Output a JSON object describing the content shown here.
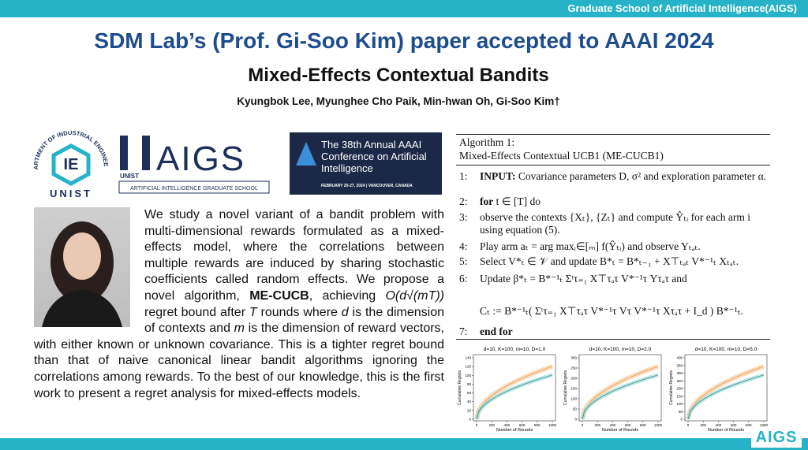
{
  "banner": {
    "text": "Graduate School of Artificial Intelligence(AIGS)"
  },
  "header": {
    "title": "SDM Lab’s (Prof. Gi-Soo Kim) paper accepted to AAAI 2024",
    "paper_title": "Mixed-Effects Contextual Bandits",
    "authors": "Kyungbok Lee, Myunghee Cho Paik, Min-hwan Oh, Gi-Soo Kim†"
  },
  "logos": {
    "ie": {
      "ring": "DEPARTMENT OF INDUSTRIAL ENGINEERING",
      "mark": "IE",
      "name": "UNIST"
    },
    "aigs": {
      "unist": "UNIST",
      "mark": "AIGS",
      "caption": "ARTIFICIAL INTELLIGENCE GRADUATE SCHOOL"
    },
    "aaai": {
      "title": "The 38th Annual AAAI Conference on Artificial Intelligence",
      "date": "FEBRUARY 20-27, 2024 | VANCOUVER, CANADA"
    },
    "footer": {
      "mark": "AIGS"
    }
  },
  "abstract": {
    "parts": [
      "We study a novel variant of a bandit problem with multi-dimensional rewards formulated as a mixed-effects model, where the correlations between multiple rewards are induced by sharing stochastic coefficients called random effects. We propose a novel algorithm, ",
      "ME-CUCB",
      ", achieving ",
      "O(d√(mT))",
      " regret bound after ",
      "T",
      " rounds where ",
      "d",
      " is the dimension of contexts and ",
      "m",
      " is the dimension of reward vectors, with either known or unknown covariance. This is a tighter regret bound than that of naive canonical linear bandit algorithms ignoring the correlations among rewards. To the best of our knowledge, this is the first work to present a regret analysis for mixed-effects models."
    ]
  },
  "algorithm": {
    "label": "Algorithm 1:",
    "name": "Mixed-Effects Contextual UCB1 (ME-CUCB1)",
    "steps": [
      {
        "number": "1:",
        "keyword": "INPUT:",
        "text": "Covariance parameters D, σ² and exploration parameter α."
      },
      {
        "number": "2:",
        "keyword": "for",
        "text": "t ∈ [T]  do"
      },
      {
        "number": "3:",
        "text": "observe the contexts {Xₜ}, {Zₜ} and compute Ŷₜᵢ for each arm i using equation (5)."
      },
      {
        "number": "4:",
        "text": "Play arm aₜ = arg maxᵢ∈[ₘ] f(Ŷₜᵢ) and observe Yₜₐₜ."
      },
      {
        "number": "5:",
        "text": "Select V*ₜ ∈ 𝒱 and update B*ₜ = B*ₜ₋₁ + X⊤ₜₐₜ V*⁻¹ₜ Xₜₐₜ."
      },
      {
        "number": "6:",
        "text": "Update β*ₜ = B*⁻¹ₜ Σᵗτ₌₁ X⊤τₐτ V*⁻¹τ Yτₐτ and"
      },
      {
        "text": "Cₜ := B*⁻¹ₜ( Σᵗτ₌₁ X⊤τₐτ V*⁻¹τ Vτ V*⁻¹τ Xτₐτ + I_d ) B*⁻¹ₜ."
      },
      {
        "number": "7:",
        "keyword": "end for"
      }
    ]
  },
  "plots": [
    {
      "title": "d=10, K=100, m=10, D=1.0",
      "x_label": "Number of Rounds",
      "y_label": "Cumulative Regrets",
      "xticks": [
        0,
        200,
        400,
        600,
        800,
        1000
      ],
      "yticks": [
        0,
        20,
        40,
        60,
        80,
        100,
        120,
        140
      ]
    },
    {
      "title": "d=10, K=100, m=10, D=2.0",
      "x_label": "Number of Rounds",
      "y_label": "Cumulative Regrets",
      "xticks": [
        0,
        200,
        400,
        600,
        800,
        1000
      ],
      "yticks": [
        0,
        50,
        100,
        150,
        200,
        250,
        300
      ]
    },
    {
      "title": "d=10, K=100, m=10, D=5.0",
      "x_label": "Number of Rounds",
      "y_label": "Cumulative Regrets",
      "xticks": [
        0,
        200,
        400,
        600,
        800,
        1000
      ],
      "yticks": [
        0,
        50,
        100,
        150,
        200,
        250,
        300,
        350,
        400
      ]
    }
  ]
}
